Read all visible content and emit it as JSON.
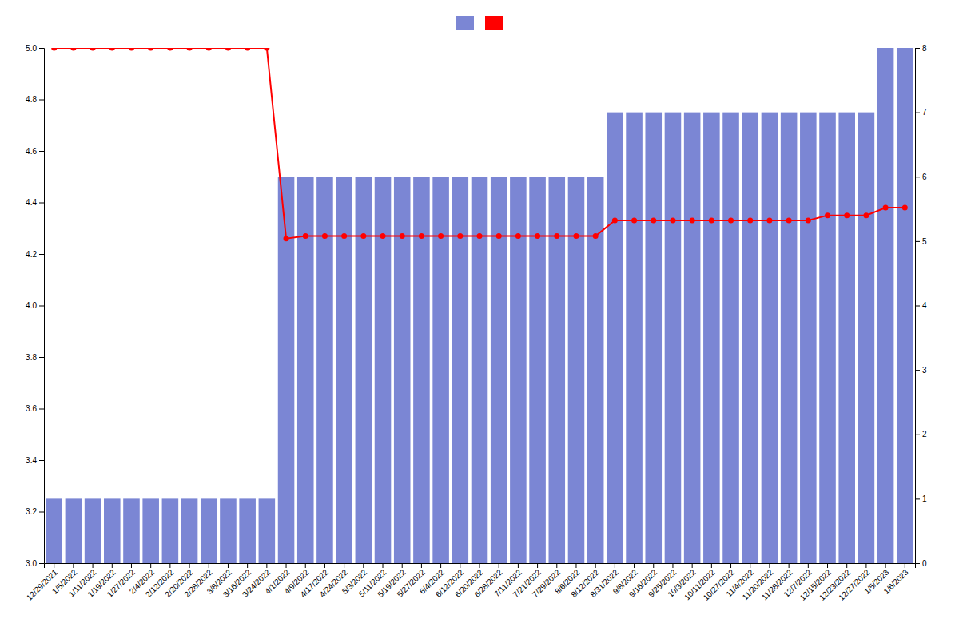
{
  "chart_data": {
    "type": "bar",
    "categories": [
      "12/29/2021",
      "1/5/2022",
      "1/11/2022",
      "1/19/2022",
      "1/27/2022",
      "2/4/2022",
      "2/12/2022",
      "2/20/2022",
      "2/28/2022",
      "3/8/2022",
      "3/16/2022",
      "3/24/2022",
      "4/1/2022",
      "4/9/2022",
      "4/17/2022",
      "4/24/2022",
      "5/3/2022",
      "5/11/2022",
      "5/19/2022",
      "5/27/2022",
      "6/4/2022",
      "6/12/2022",
      "6/20/2022",
      "6/28/2022",
      "7/11/2022",
      "7/21/2022",
      "7/29/2022",
      "8/6/2022",
      "8/12/2022",
      "8/31/2022",
      "9/8/2022",
      "9/16/2022",
      "9/25/2022",
      "10/3/2022",
      "10/11/2022",
      "10/27/2022",
      "11/4/2022",
      "11/20/2022",
      "11/28/2022",
      "12/7/2022",
      "12/15/2022",
      "12/23/2022",
      "12/27/2022",
      "1/5/2023",
      "1/6/2023"
    ],
    "series": [
      {
        "type": "bar",
        "axis": "y2",
        "color": "#7b86d4",
        "values": [
          1,
          1,
          1,
          1,
          1,
          1,
          1,
          1,
          1,
          1,
          1,
          1,
          6,
          6,
          6,
          6,
          6,
          6,
          6,
          6,
          6,
          6,
          6,
          6,
          6,
          6,
          6,
          6,
          6,
          7,
          7,
          7,
          7,
          7,
          7,
          7,
          7,
          7,
          7,
          7,
          7,
          7,
          7,
          8,
          8
        ]
      },
      {
        "type": "line",
        "color": "#ff0000",
        "marker": "circle",
        "values": [
          5.0,
          5.0,
          5.0,
          5.0,
          5.0,
          5.0,
          5.0,
          5.0,
          5.0,
          5.0,
          5.0,
          5.0,
          4.26,
          4.27,
          4.27,
          4.27,
          4.27,
          4.27,
          4.27,
          4.27,
          4.27,
          4.27,
          4.27,
          4.27,
          4.27,
          4.27,
          4.27,
          4.27,
          4.27,
          4.33,
          4.33,
          4.33,
          4.33,
          4.33,
          4.33,
          4.33,
          4.33,
          4.33,
          4.33,
          4.33,
          4.35,
          4.35,
          4.35,
          4.38,
          4.38
        ]
      }
    ],
    "ylim": [
      3.0,
      5.0
    ],
    "yticks": [
      {
        "value": 3.0,
        "label": "3.0"
      },
      3.2,
      3.4,
      3.6,
      3.8,
      {
        "value": 4.0,
        "label": "4.0"
      },
      4.2,
      4.4,
      4.6,
      4.8,
      {
        "value": 5.0,
        "label": "5.0"
      }
    ],
    "y2lim": [
      0,
      8
    ],
    "y2ticks": [
      0,
      1,
      2,
      3,
      4,
      5,
      6,
      7,
      8
    ],
    "grid": false,
    "legend": "top"
  }
}
